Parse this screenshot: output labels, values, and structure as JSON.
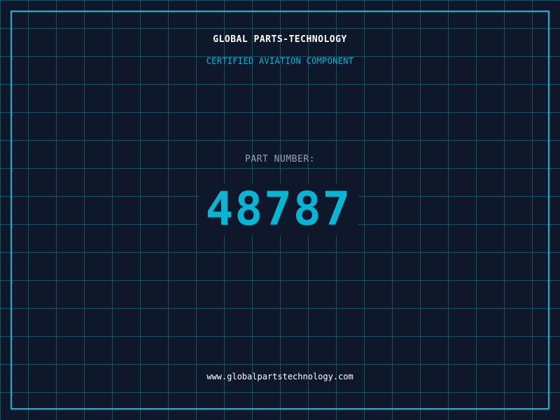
{
  "header": {
    "company": "GLOBAL PARTS-TECHNOLOGY",
    "subtitle": "CERTIFIED AVIATION COMPONENT"
  },
  "part": {
    "label": "PART NUMBER:",
    "number": "48787"
  },
  "footer": {
    "url": "www.globalpartstechnology.com"
  },
  "colors": {
    "background": "#0f172a",
    "accent": "#06b6d4",
    "grid": "#155e75",
    "label": "#94a3b8"
  }
}
